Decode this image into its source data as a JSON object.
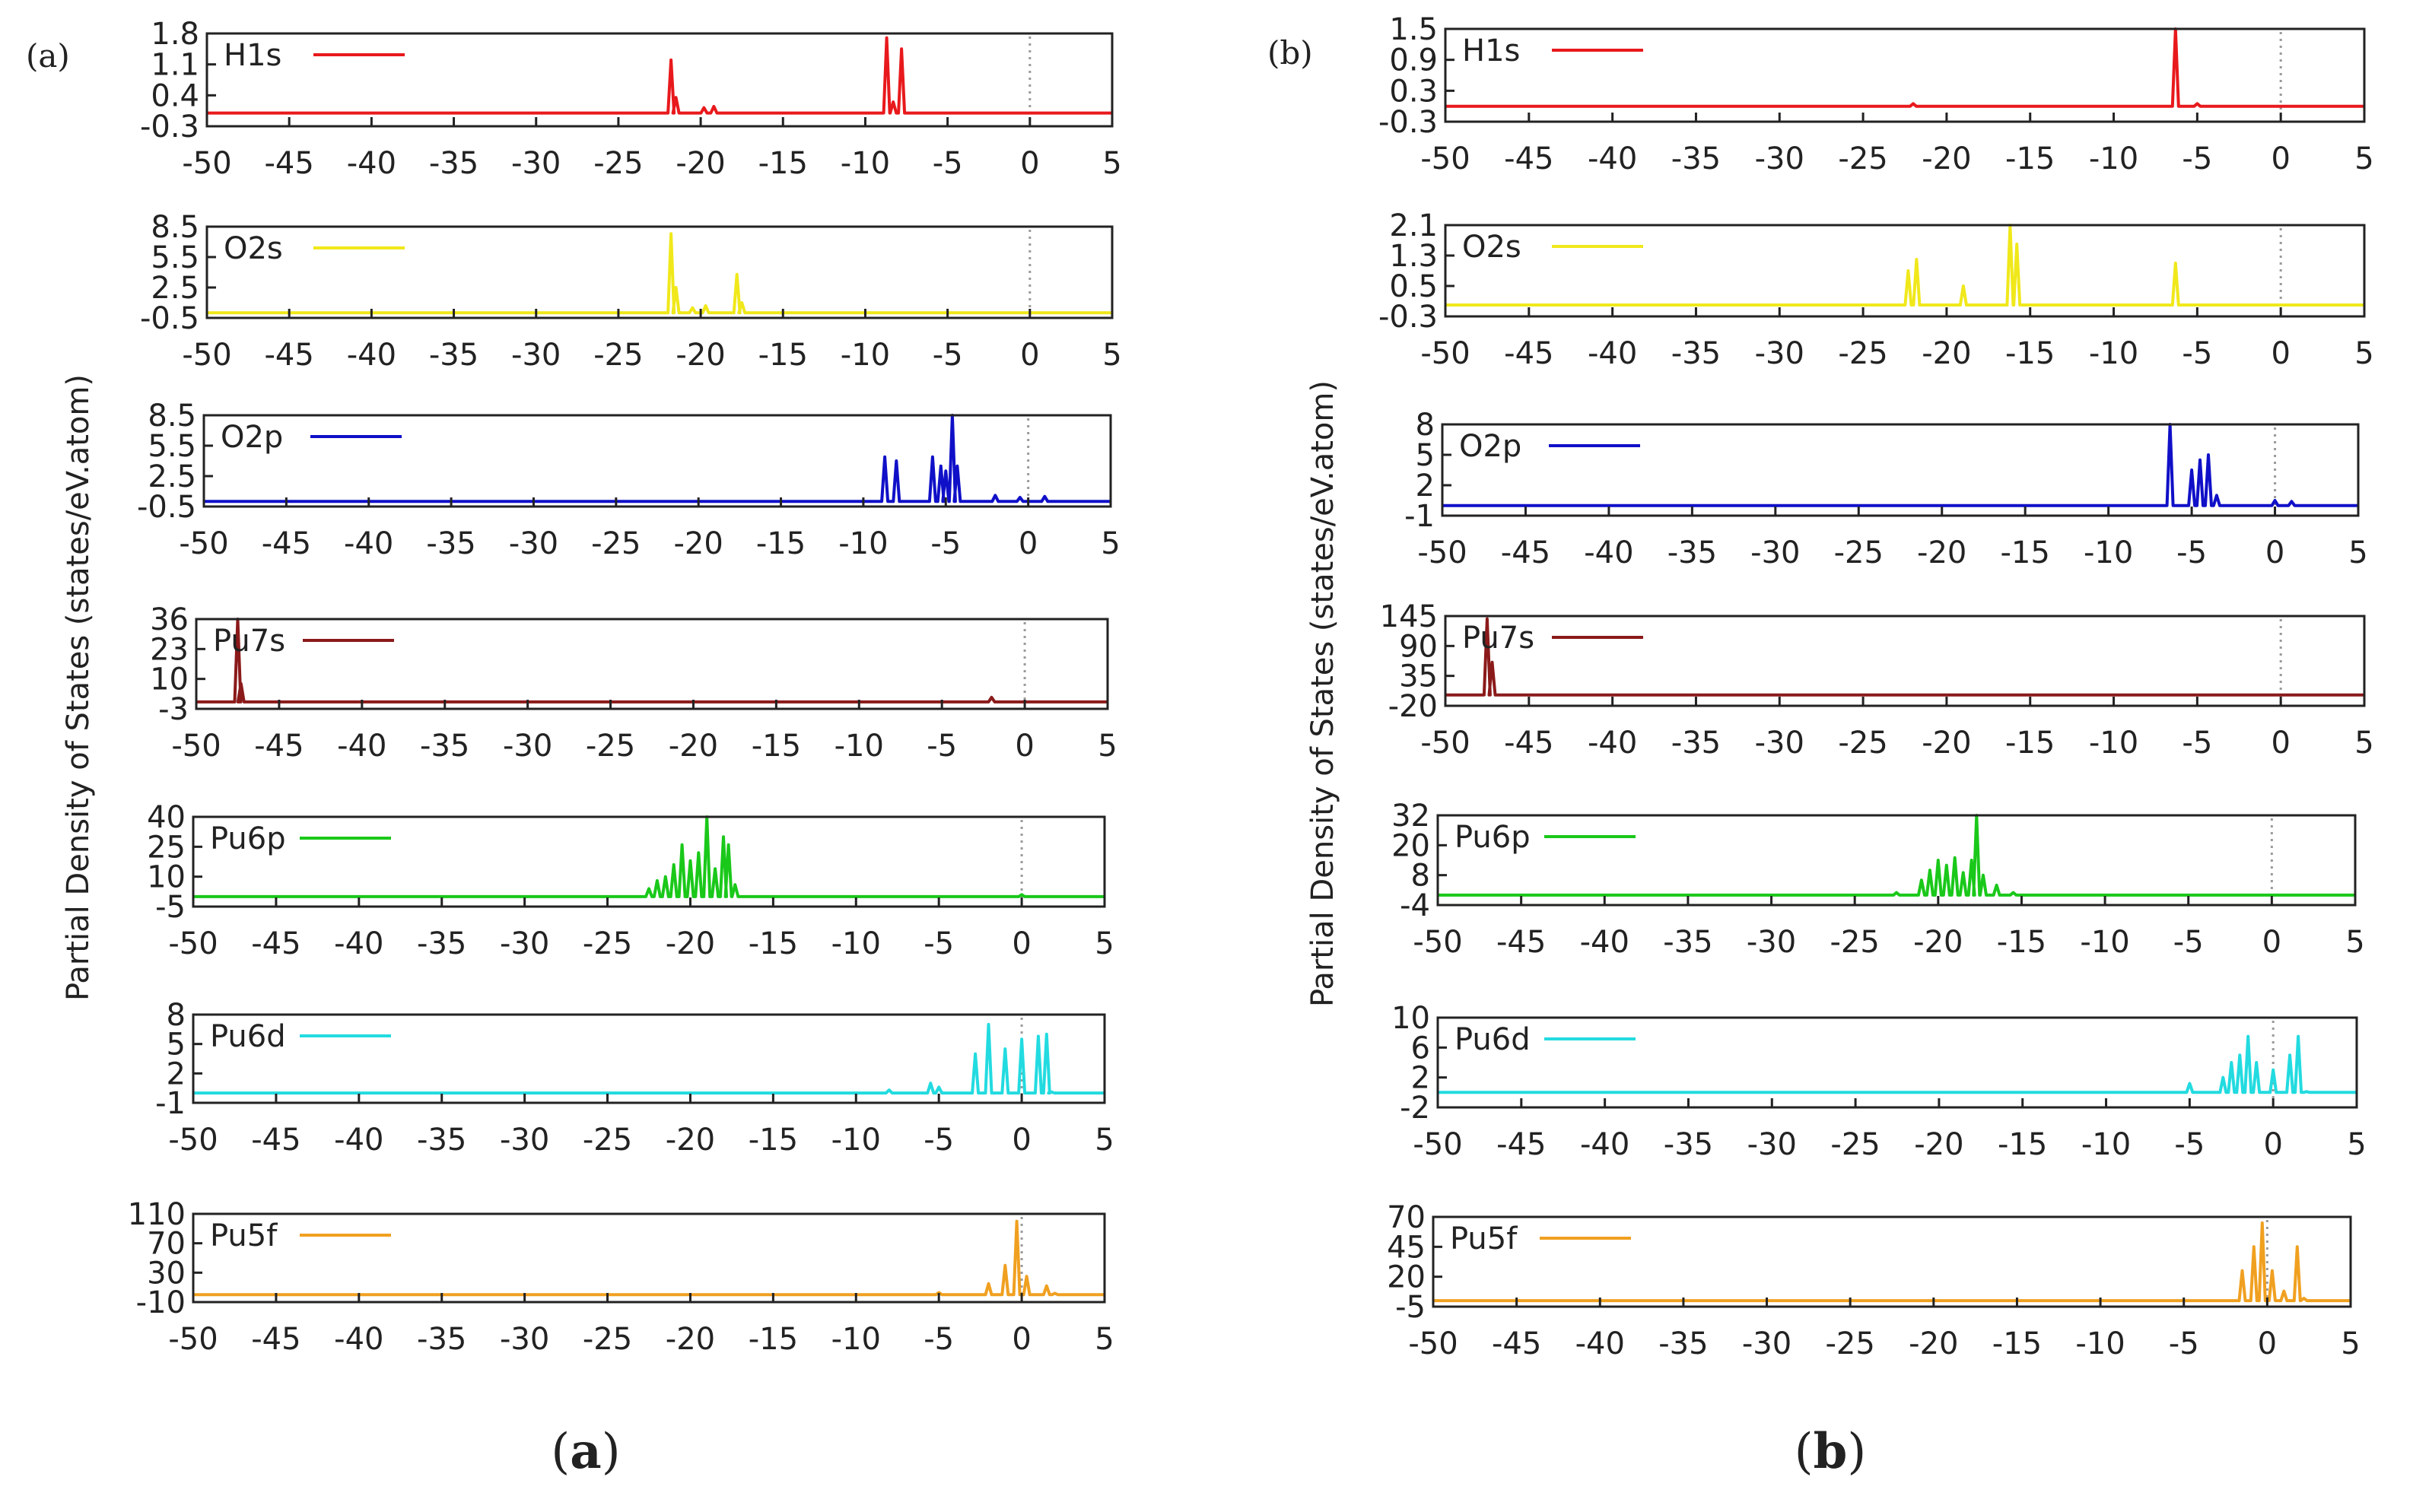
{
  "chart_data": [
    {
      "panel": "(a)",
      "caption": "a",
      "type": "line",
      "ylabel": "Partial Density of States (states/eV.atom)",
      "xlim": [
        -50,
        5
      ],
      "xticks": [
        -50,
        -45,
        -40,
        -35,
        -30,
        -25,
        -20,
        -15,
        -10,
        -5,
        0,
        5
      ],
      "subplots": [
        {
          "name": "H1s",
          "color": "#e8191c",
          "ylim": [
            -0.3,
            1.8
          ],
          "yticks": [
            "1.8",
            "1.1",
            "0.4",
            "-0.3"
          ],
          "baseline": 0.0,
          "peaks": [
            [
              -21.8,
              1.2
            ],
            [
              -21.5,
              0.35
            ],
            [
              -19.8,
              0.12
            ],
            [
              -19.2,
              0.15
            ],
            [
              -8.7,
              1.7
            ],
            [
              -8.3,
              0.25
            ],
            [
              -7.8,
              1.45
            ]
          ]
        },
        {
          "name": "O2s",
          "color": "#f0e81a",
          "ylim": [
            -0.5,
            8.5
          ],
          "yticks": [
            "8.5",
            "5.5",
            "2.5",
            "-0.5"
          ],
          "baseline": 0.0,
          "peaks": [
            [
              -21.8,
              7.8
            ],
            [
              -21.5,
              2.5
            ],
            [
              -20.5,
              0.5
            ],
            [
              -19.7,
              0.7
            ],
            [
              -17.8,
              3.8
            ],
            [
              -17.5,
              1.0
            ]
          ]
        },
        {
          "name": "O2p",
          "color": "#1010c8",
          "ylim": [
            -0.5,
            8.5
          ],
          "yticks": [
            "8.5",
            "5.5",
            "2.5",
            "-0.5"
          ],
          "baseline": 0.0,
          "peaks": [
            [
              -8.7,
              4.4
            ],
            [
              -8.0,
              4.0
            ],
            [
              -5.8,
              4.4
            ],
            [
              -5.3,
              3.5
            ],
            [
              -5.0,
              3.0
            ],
            [
              -4.6,
              8.5
            ],
            [
              -4.3,
              3.5
            ],
            [
              -2.0,
              0.6
            ],
            [
              -0.5,
              0.4
            ],
            [
              1.0,
              0.5
            ]
          ]
        },
        {
          "name": "Pu7s",
          "color": "#8b1a1a",
          "ylim": [
            -3,
            36
          ],
          "yticks": [
            "36",
            "23",
            "10",
            "-3"
          ],
          "baseline": 0.0,
          "peaks": [
            [
              -47.5,
              36
            ],
            [
              -47.3,
              8
            ],
            [
              -2.0,
              2.0
            ]
          ]
        },
        {
          "name": "Pu6p",
          "color": "#1ac81a",
          "ylim": [
            -5,
            40
          ],
          "yticks": [
            "40",
            "25",
            "10",
            "-5"
          ],
          "baseline": 0.0,
          "peaks": [
            [
              -22.5,
              4
            ],
            [
              -22.0,
              8
            ],
            [
              -21.5,
              10
            ],
            [
              -21.0,
              16
            ],
            [
              -20.5,
              26
            ],
            [
              -20.0,
              18
            ],
            [
              -19.5,
              22
            ],
            [
              -19.0,
              40
            ],
            [
              -18.5,
              14
            ],
            [
              -18.0,
              30
            ],
            [
              -17.7,
              26
            ],
            [
              -17.3,
              6
            ],
            [
              0.0,
              1.0
            ]
          ]
        },
        {
          "name": "Pu6d",
          "color": "#22dbe0",
          "ylim": [
            -1,
            8
          ],
          "yticks": [
            "8",
            "5",
            "2",
            "-1"
          ],
          "baseline": 0.0,
          "peaks": [
            [
              -8.0,
              0.3
            ],
            [
              -5.5,
              1.0
            ],
            [
              -5.0,
              0.6
            ],
            [
              -2.8,
              4.0
            ],
            [
              -2.0,
              7.0
            ],
            [
              -1.0,
              4.5
            ],
            [
              0.0,
              5.5
            ],
            [
              1.0,
              5.8
            ],
            [
              1.5,
              6.0
            ],
            [
              1.8,
              0.1
            ]
          ]
        },
        {
          "name": "Pu5f",
          "color": "#f0a020",
          "ylim": [
            -10,
            110
          ],
          "yticks": [
            "110",
            "70",
            "30",
            "-10"
          ],
          "baseline": 0.0,
          "peaks": [
            [
              -5.0,
              3
            ],
            [
              -2.0,
              15
            ],
            [
              -1.0,
              40
            ],
            [
              -0.3,
              100
            ],
            [
              0.3,
              25
            ],
            [
              1.5,
              12
            ],
            [
              2.0,
              2
            ]
          ]
        }
      ]
    },
    {
      "panel": "(b)",
      "caption": "b",
      "type": "line",
      "ylabel": "Partial Density of States (states/eV.atom)",
      "xlim": [
        -50,
        5
      ],
      "xticks": [
        -50,
        -45,
        -40,
        -35,
        -30,
        -25,
        -20,
        -15,
        -10,
        -5,
        0,
        5
      ],
      "subplots": [
        {
          "name": "H1s",
          "color": "#e8191c",
          "ylim": [
            -0.3,
            1.5
          ],
          "yticks": [
            "1.5",
            "0.9",
            "0.3",
            "-0.3"
          ],
          "baseline": 0.0,
          "peaks": [
            [
              -22.0,
              0.05
            ],
            [
              -6.3,
              1.5
            ],
            [
              -5.0,
              0.05
            ]
          ]
        },
        {
          "name": "O2s",
          "color": "#f0e81a",
          "ylim": [
            -0.3,
            2.1
          ],
          "yticks": [
            "2.1",
            "1.3",
            "0.5",
            "-0.3"
          ],
          "baseline": 0.0,
          "peaks": [
            [
              -22.3,
              0.9
            ],
            [
              -21.8,
              1.2
            ],
            [
              -19.0,
              0.5
            ],
            [
              -16.2,
              2.1
            ],
            [
              -15.8,
              1.6
            ],
            [
              -6.3,
              1.1
            ]
          ]
        },
        {
          "name": "O2p",
          "color": "#1010c8",
          "ylim": [
            -1,
            8
          ],
          "yticks": [
            "8",
            "5",
            "2",
            "-1"
          ],
          "baseline": 0.0,
          "peaks": [
            [
              -6.3,
              8
            ],
            [
              -5.0,
              3.5
            ],
            [
              -4.5,
              4.5
            ],
            [
              -4.0,
              5.0
            ],
            [
              -3.5,
              1.0
            ],
            [
              0.0,
              0.5
            ],
            [
              1.0,
              0.4
            ]
          ]
        },
        {
          "name": "Pu7s",
          "color": "#8b1a1a",
          "ylim": [
            -20,
            145
          ],
          "yticks": [
            "145",
            "90",
            "35",
            "-20"
          ],
          "baseline": 0.0,
          "peaks": [
            [
              -47.5,
              140
            ],
            [
              -47.2,
              60
            ]
          ]
        },
        {
          "name": "Pu6p",
          "color": "#1ac81a",
          "ylim": [
            -4,
            32
          ],
          "yticks": [
            "32",
            "20",
            "8",
            "-4"
          ],
          "baseline": 0.0,
          "peaks": [
            [
              -22.5,
              1
            ],
            [
              -21.0,
              6
            ],
            [
              -20.5,
              10
            ],
            [
              -20.0,
              14
            ],
            [
              -19.5,
              12
            ],
            [
              -19.0,
              15
            ],
            [
              -18.5,
              9
            ],
            [
              -18.0,
              14
            ],
            [
              -17.7,
              32
            ],
            [
              -17.3,
              8
            ],
            [
              -16.5,
              4
            ],
            [
              -15.5,
              1
            ]
          ]
        },
        {
          "name": "Pu6d",
          "color": "#22dbe0",
          "ylim": [
            -2,
            10
          ],
          "yticks": [
            "10",
            "6",
            "2",
            "-2"
          ],
          "baseline": 0.0,
          "peaks": [
            [
              -5.0,
              1.2
            ],
            [
              -3.0,
              2.0
            ],
            [
              -2.5,
              4.0
            ],
            [
              -2.0,
              5.0
            ],
            [
              -1.5,
              7.5
            ],
            [
              -1.0,
              4.0
            ],
            [
              0.0,
              3.0
            ],
            [
              1.0,
              5.0
            ],
            [
              1.5,
              7.5
            ],
            [
              2.0,
              0.1
            ]
          ]
        },
        {
          "name": "Pu5f",
          "color": "#f0a020",
          "ylim": [
            -5,
            70
          ],
          "yticks": [
            "70",
            "45",
            "20",
            "-5"
          ],
          "baseline": 0.0,
          "peaks": [
            [
              -1.5,
              25
            ],
            [
              -0.8,
              45
            ],
            [
              -0.3,
              65
            ],
            [
              0.3,
              25
            ],
            [
              1.0,
              8
            ],
            [
              1.8,
              45
            ],
            [
              2.2,
              2
            ]
          ]
        }
      ]
    }
  ]
}
